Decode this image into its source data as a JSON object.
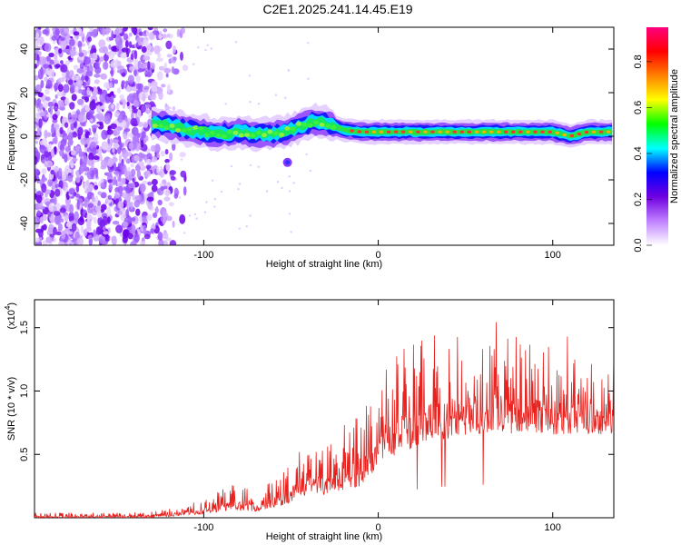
{
  "title": "C2E1.2025.241.14.45.E19",
  "chart_data": [
    {
      "type": "heatmap",
      "title": "C2E1.2025.241.14.45.E19",
      "xlabel": "Height of straight line (km)",
      "ylabel": "Frequency (Hz)",
      "xlim": [
        -197,
        135
      ],
      "ylim": [
        -50,
        50
      ],
      "xticks": [
        -100,
        0,
        100
      ],
      "yticks": [
        -40,
        -20,
        0,
        20,
        40
      ],
      "colorbar": {
        "label": "Normalized spectral amplitude",
        "range": [
          0.0,
          0.95
        ],
        "ticks": [
          0.0,
          0.2,
          0.4,
          0.6,
          0.8
        ],
        "colors": [
          "#ffffff",
          "#c080ff",
          "#7000e0",
          "#0000ff",
          "#00ffff",
          "#00ff00",
          "#ffff00",
          "#ff8000",
          "#ff0000",
          "#ff0080"
        ]
      },
      "ridge": {
        "x": [
          -130,
          -120,
          -110,
          -100,
          -90,
          -80,
          -70,
          -60,
          -50,
          -40,
          -35,
          -30,
          -20,
          -10,
          0,
          20,
          40,
          60,
          80,
          100,
          110,
          120,
          135
        ],
        "y": [
          6,
          5,
          3,
          2,
          1,
          2,
          1,
          1,
          3,
          6,
          7,
          6,
          3,
          2,
          2,
          2,
          2,
          2,
          2,
          2,
          0,
          2,
          2
        ]
      },
      "noise_region_x": [
        -197,
        -120
      ]
    },
    {
      "type": "line",
      "xlabel": "Height of straight line (km)",
      "ylabel": "SNR (10 * v/v)",
      "scale_label": "(x10",
      "scale_exp": "4",
      "xlim": [
        -197,
        135
      ],
      "ylim": [
        0,
        1.72
      ],
      "xticks": [
        -100,
        0,
        100
      ],
      "yticks": [
        0.5,
        1.0,
        1.5
      ],
      "series": [
        {
          "name": "SNR",
          "color": "#e8231f",
          "envelope_x": [
            -197,
            -150,
            -130,
            -120,
            -110,
            -100,
            -90,
            -80,
            -70,
            -60,
            -50,
            -40,
            -30,
            -20,
            -10,
            0,
            10,
            20,
            30,
            40,
            50,
            60,
            70,
            80,
            90,
            100,
            110,
            120,
            135
          ],
          "envelope_top": [
            0.04,
            0.04,
            0.05,
            0.07,
            0.1,
            0.15,
            0.25,
            0.3,
            0.2,
            0.3,
            0.45,
            0.6,
            0.55,
            0.75,
            0.8,
            1.2,
            1.3,
            1.4,
            1.45,
            1.5,
            1.5,
            1.55,
            1.6,
            1.45,
            1.4,
            1.35,
            1.45,
            1.35,
            1.3
          ],
          "envelope_base": [
            0.0,
            0.0,
            0.0,
            0.01,
            0.02,
            0.03,
            0.05,
            0.06,
            0.05,
            0.08,
            0.12,
            0.18,
            0.18,
            0.22,
            0.25,
            0.4,
            0.5,
            0.55,
            0.6,
            0.62,
            0.65,
            0.65,
            0.66,
            0.66,
            0.66,
            0.65,
            0.66,
            0.66,
            0.65
          ]
        }
      ]
    }
  ]
}
